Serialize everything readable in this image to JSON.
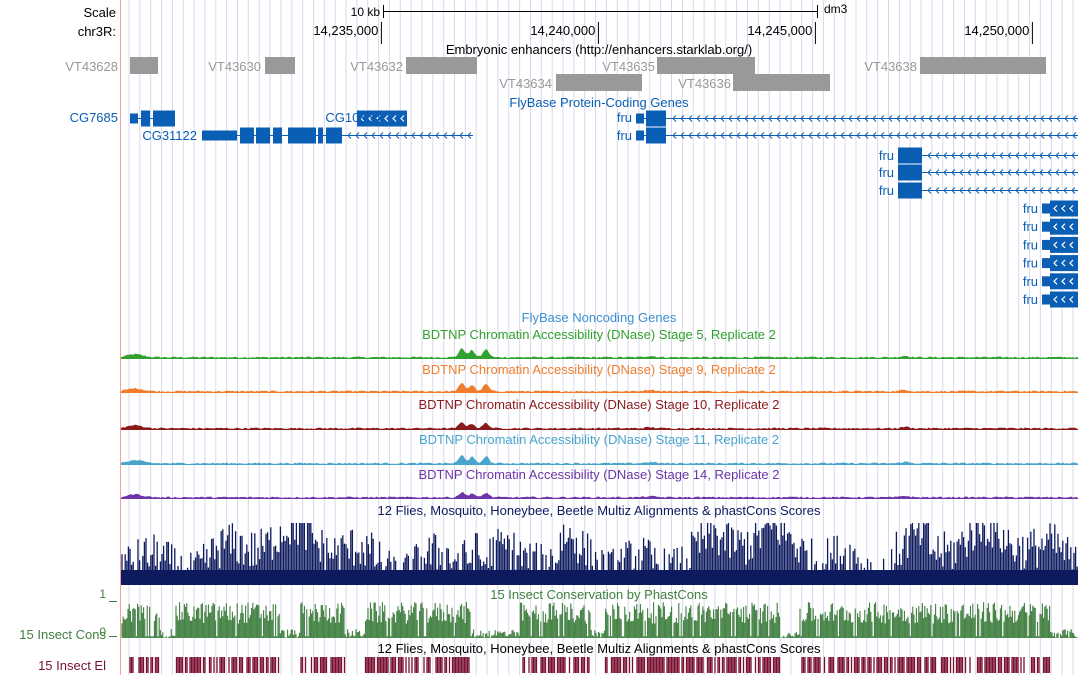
{
  "colors": {
    "enhancer": "#999999",
    "gene": "#0a5fb4",
    "noncoding": "#3b8fd4",
    "stage5": "#31a12f",
    "stage9": "#f07d2b",
    "stage10": "#8b1a1a",
    "stage11": "#4aa5cc",
    "stage14": "#6d35a8",
    "multiz": "#0d1a5e",
    "phastcons": "#3f7f3f",
    "elements": "#7a1030",
    "gridline": "#d8d8ec",
    "redline": "#ff9a9a"
  },
  "ruler": {
    "scale_label": "Scale",
    "scale_bar_label": "10 kb",
    "assembly": "dm3",
    "chrom_label": "chr3R:",
    "ticks": [
      {
        "pos": 14235000,
        "label": "14,235,000"
      },
      {
        "pos": 14240000,
        "label": "14,240,000"
      },
      {
        "pos": 14245000,
        "label": "14,245,000"
      },
      {
        "pos": 14250000,
        "label": "14,250,000"
      }
    ]
  },
  "tracks": {
    "enhancers": {
      "title": "Embryonic enhancers (http://enhancers.starklab.org/)",
      "items": [
        {
          "name": "VT43628"
        },
        {
          "name": "VT43630"
        },
        {
          "name": "VT43632"
        },
        {
          "name": "VT43634"
        },
        {
          "name": "VT43635"
        },
        {
          "name": "VT43636"
        },
        {
          "name": "VT43638"
        }
      ]
    },
    "genes": {
      "title": "FlyBase Protein-Coding Genes",
      "items": [
        {
          "name": "CG7685"
        },
        {
          "name": "CG31122"
        },
        {
          "name": "CG10864"
        },
        {
          "name": "fru"
        },
        {
          "name": "fru"
        },
        {
          "name": "fru"
        },
        {
          "name": "fru"
        },
        {
          "name": "fru"
        },
        {
          "name": "fru"
        },
        {
          "name": "fru"
        },
        {
          "name": "fru"
        },
        {
          "name": "fru"
        },
        {
          "name": "fru"
        },
        {
          "name": "fru"
        }
      ]
    },
    "noncoding": {
      "title": "FlyBase Noncoding Genes"
    },
    "dnase": [
      {
        "title": "BDTNP Chromatin Accessibility (DNase) Stage 5, Replicate 2",
        "color_key": "stage5"
      },
      {
        "title": "BDTNP Chromatin Accessibility (DNase) Stage 9, Replicate 2",
        "color_key": "stage9"
      },
      {
        "title": "BDTNP Chromatin Accessibility (DNase) Stage 10, Replicate 2",
        "color_key": "stage10"
      },
      {
        "title": "BDTNP Chromatin Accessibility (DNase) Stage 11, Replicate 2",
        "color_key": "stage11"
      },
      {
        "title": "BDTNP Chromatin Accessibility (DNase) Stage 14, Replicate 2",
        "color_key": "stage14"
      }
    ],
    "multiz": {
      "title": "12 Flies, Mosquito, Honeybee, Beetle Multiz Alignments & phastCons Scores"
    },
    "phastcons": {
      "title": "15 Insect Conservation by PhastCons",
      "left_label": "15 Insect Cons",
      "ymax_label": "1",
      "ymin_label": "0"
    },
    "elements": {
      "title": "12 Flies, Mosquito, Honeybee, Beetle Multiz Alignments & phastCons Scores",
      "left_label": "15 Insect El"
    }
  }
}
